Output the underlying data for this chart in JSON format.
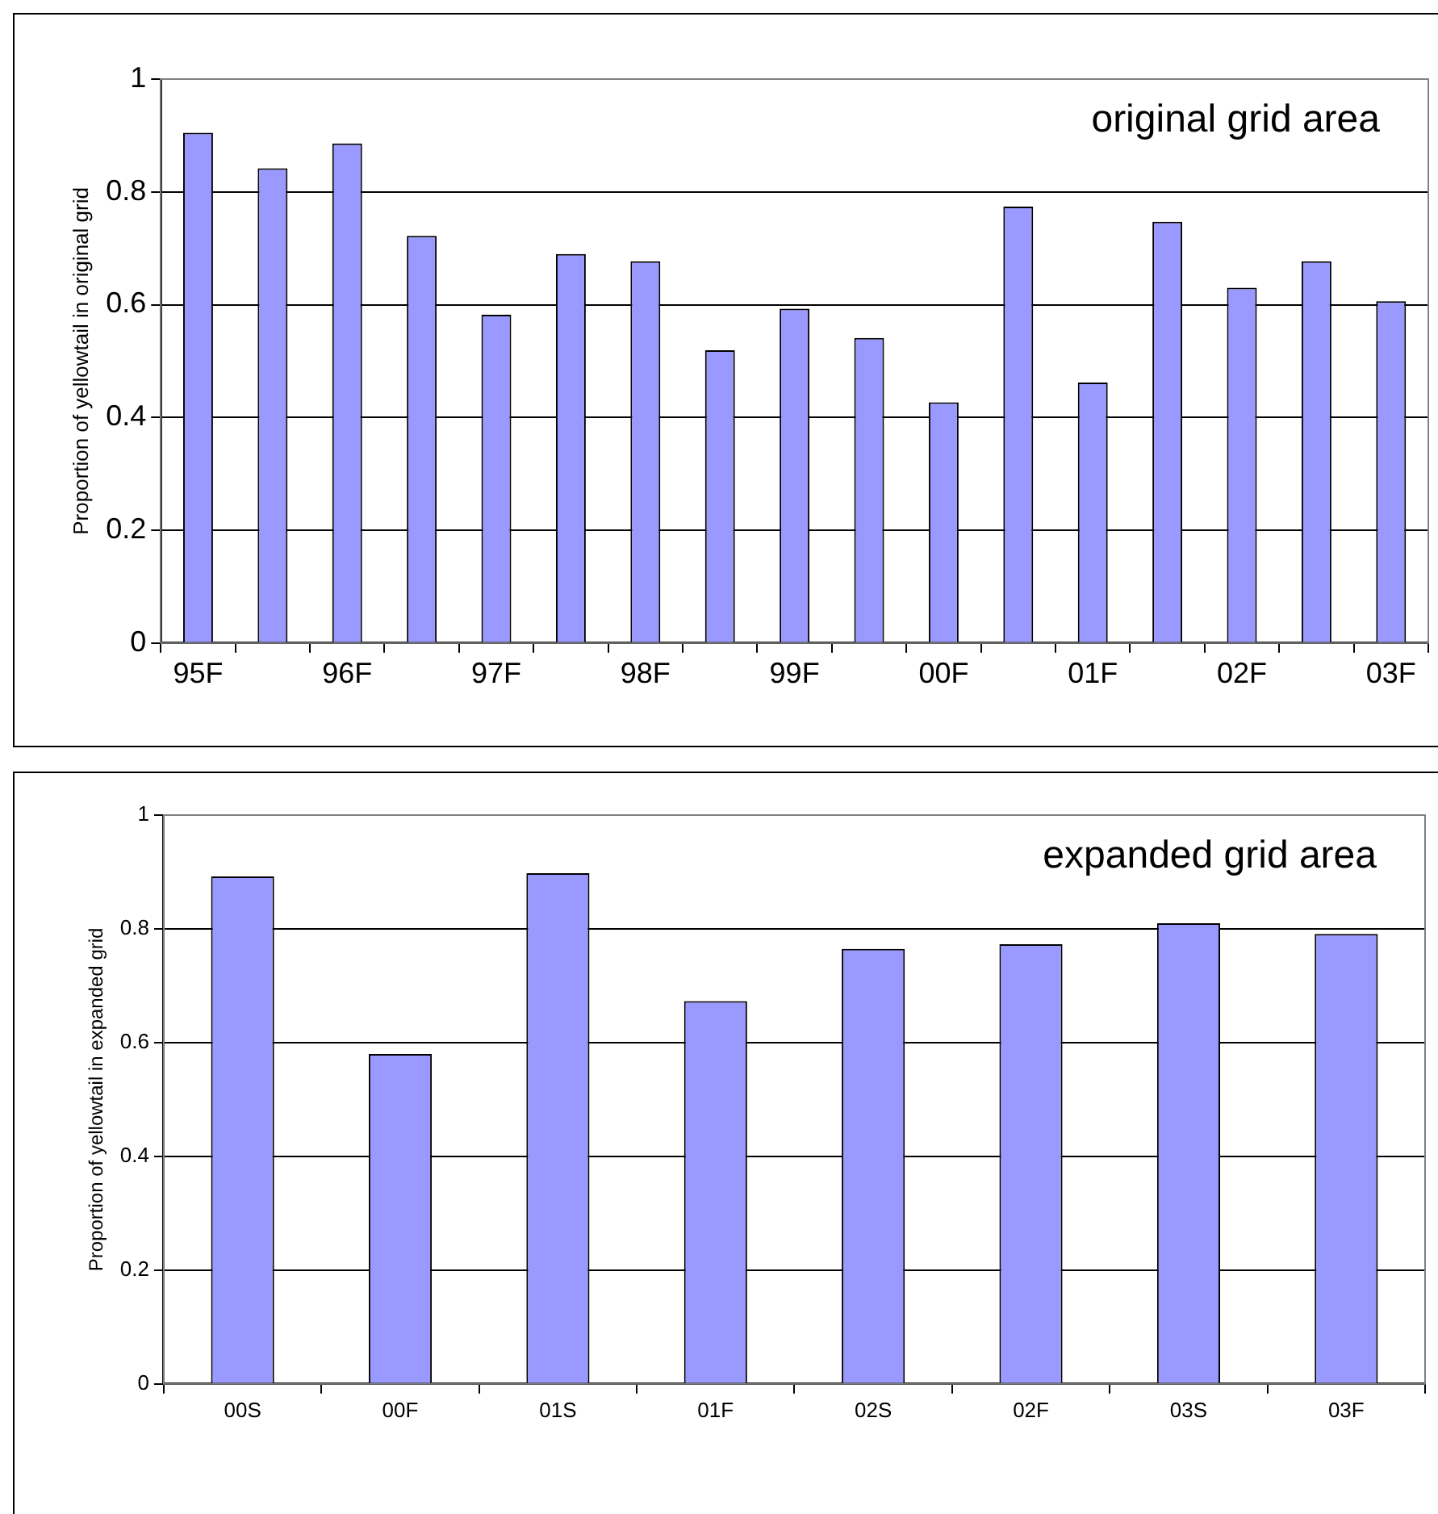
{
  "chart_data": [
    {
      "type": "bar",
      "annotations": [
        "original grid area"
      ],
      "ylabel": "Proportion of yellowtail in original grid",
      "categories": [
        "95F",
        null,
        "96F",
        null,
        "97F",
        null,
        "98F",
        null,
        "99F",
        null,
        "00F",
        null,
        "01F",
        null,
        "02F",
        null,
        "03F"
      ],
      "values": [
        0.905,
        0.842,
        0.886,
        0.722,
        0.582,
        0.69,
        0.677,
        0.519,
        0.593,
        0.541,
        0.427,
        0.774,
        0.462,
        0.747,
        0.63,
        0.677,
        0.606
      ],
      "color": "#9999ff",
      "ylim": [
        0,
        1
      ],
      "yticks": [
        0,
        0.2,
        0.4,
        0.6,
        0.8,
        1
      ],
      "grid": "y",
      "legend": false
    },
    {
      "type": "bar",
      "annotations": [
        "expanded grid area"
      ],
      "ylabel": "Proportion of yellowtail in expanded grid",
      "categories": [
        "00S",
        "00F",
        "01S",
        "01F",
        "02S",
        "02F",
        "03S",
        "03F"
      ],
      "values": [
        0.892,
        0.58,
        0.898,
        0.673,
        0.765,
        0.773,
        0.81,
        0.791
      ],
      "color": "#9999ff",
      "ylim": [
        0,
        1
      ],
      "yticks": [
        0,
        0.2,
        0.4,
        0.6,
        0.8,
        1
      ],
      "grid": "y",
      "legend": false
    }
  ]
}
